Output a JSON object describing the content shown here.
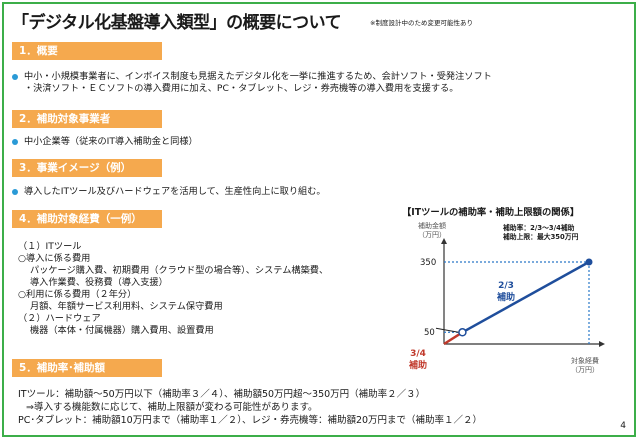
{
  "title": "「デジタル化基盤導入類型」の概要について",
  "note": "※制度設計中のため変更可能性あり",
  "sections": {
    "s1": "1．概要",
    "s2": "2．補助対象事業者",
    "s3": "3．事業イメージ（例）",
    "s4": "4．補助対象経費（一例）",
    "s5": "5．補助率･補助額"
  },
  "s1_lines": [
    "中小・小規模事業者に、インボイス制度も見据えたデジタル化を一挙に推進するため、会計ソフト・受発注ソフト",
    "・決済ソフト・ＥＣソフトの導入費用に加え、PC・タブレット、レジ・券売機等の導入費用を支援する。"
  ],
  "s2_line": "中小企業等（従来のIT導入補助金と同様）",
  "s3_line": "導入したITツール及びハードウェアを活用して、生産性向上に取り組む。",
  "s4_lines": [
    "（１）ITツール",
    "○導入に係る費用",
    "パッケージ購入費、初期費用（クラウド型の場合等）、システム構築費、",
    "導入作業費、役務費（導入支援）",
    "○利用に係る費用（２年分）",
    "月額、年額サービス利用料、システム保守費用",
    "（２）ハードウェア",
    "機器（本体・付属機器）購入費用、設置費用"
  ],
  "s5_lines": [
    "ITツール：補助額～50万円以下（補助率３／４）、補助額50万円超～350万円（補助率２／３）",
    "⇒導入する機能数に応じて、補助上限額が変わる可能性があります。",
    "PC･タブレット：補助額10万円まで（補助率１／２）、レジ・券売機等：補助額20万円まで（補助率１／２）"
  ],
  "chart": {
    "title": "【ITツールの補助率・補助上限額の関係】",
    "y_axis_label": [
      "補助金額",
      "（万円）"
    ],
    "x_axis_label": [
      "対象経費",
      "（万円）"
    ],
    "rate_line": "補助率：2/3～3/4補助",
    "cap_line": "補助上限：最大350万円",
    "tick_350": "350",
    "tick_50": "50",
    "blue_label": [
      "2/3",
      "補助"
    ],
    "red_label": [
      "3/4",
      "補助"
    ],
    "colors": {
      "blue": "#1f4e9c",
      "red": "#c0392b",
      "dashed": "#2a78c8"
    }
  },
  "chart_data": {
    "type": "line",
    "title": "【ITツールの補助率・補助上限額の関係】",
    "xlabel": "対象経費（万円）",
    "ylabel": "補助金額（万円）",
    "yticks": [
      "50",
      "350"
    ],
    "series": [
      {
        "name": "3/4補助",
        "x": [
          0,
          66.7
        ],
        "y": [
          0,
          50
        ]
      },
      {
        "name": "2/3補助",
        "x": [
          66.7,
          525
        ],
        "y": [
          50,
          350
        ]
      }
    ]
  },
  "page_number": "4"
}
